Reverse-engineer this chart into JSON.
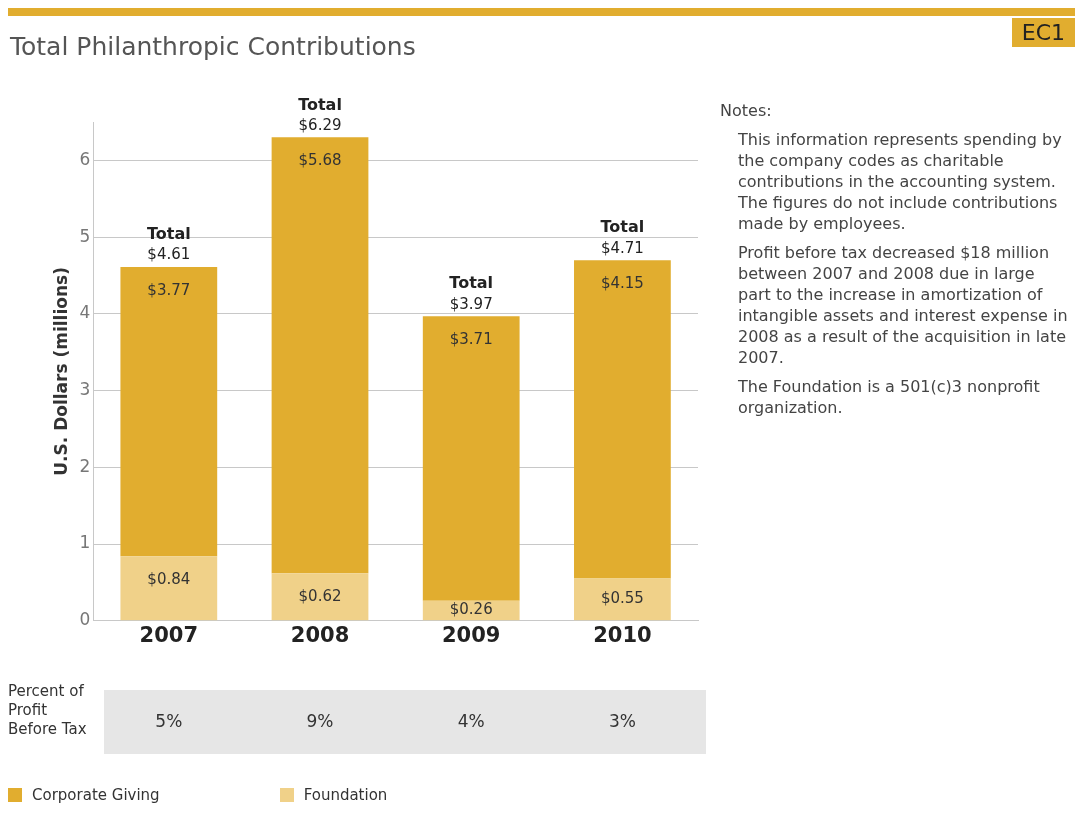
{
  "chart_data": {
    "type": "bar",
    "title": "Total Philanthropic Contributions",
    "subtitle": "EC1",
    "ylabel": "U.S. Dollars (millions)",
    "categories": [
      "2007",
      "2008",
      "2009",
      "2010"
    ],
    "stacked": true,
    "series": [
      {
        "name": "Foundation",
        "color": "#f0d189",
        "values": [
          0.84,
          0.62,
          0.26,
          0.55
        ],
        "value_labels": [
          "$0.84",
          "$0.62",
          "$0.26",
          "$0.55"
        ]
      },
      {
        "name": "Corporate Giving",
        "color": "#e1ad2f",
        "values": [
          3.77,
          5.68,
          3.71,
          4.15
        ],
        "value_labels": [
          "$3.77",
          "$5.68",
          "$3.71",
          "$4.15"
        ]
      }
    ],
    "totals": [
      "Total\n$4.61",
      "Total\n$6.29",
      "Total\n$3.97",
      "Total\n$4.71"
    ],
    "ylim": [
      0,
      6.5
    ],
    "yticks": [
      0,
      1,
      2,
      3,
      4,
      5,
      6
    ],
    "grid": "y",
    "legend": "bottom left",
    "annotations": [
      "Percent of Profit Before Tax",
      "5%",
      "9%",
      "4%",
      "3%",
      "Notes:",
      "This information represents spending by the company codes as charitable contributions in the accounting system. The figures do not include contributions made by employees.",
      "Profit before tax decreased $18 million between 2007 and 2008 due in large part to the increase in amortization of intangible assets and interest expense in 2008 as a result of the acquisition in late 2007.",
      "The Foundation is a 501(c)3 nonprofit organization."
    ]
  }
}
